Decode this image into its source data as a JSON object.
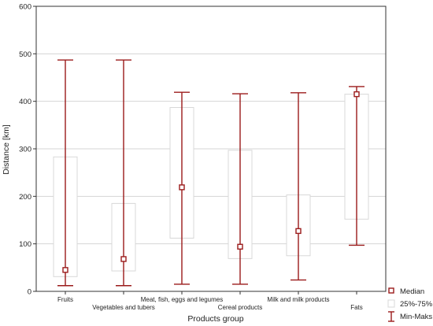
{
  "chart_data": {
    "type": "box",
    "xlabel": "Products group",
    "ylabel": "Distance [km]",
    "ylim": [
      0,
      600
    ],
    "yticks": [
      0,
      100,
      200,
      300,
      400,
      500,
      600
    ],
    "grid": true,
    "legend_placement": "bottom-right",
    "categories": [
      "Fruits",
      "Vegetables and tubers",
      "Meat, fish, eggs and legumes",
      "Cereal products",
      "Milk and milk products",
      "Fats"
    ],
    "series": [
      {
        "name": "Median",
        "values": [
          45,
          68,
          219,
          94,
          127,
          415
        ]
      },
      {
        "name": "25%-75%",
        "q1": [
          31,
          43,
          112,
          69,
          75,
          152
        ],
        "q3": [
          283,
          185,
          387,
          297,
          203,
          415
        ]
      },
      {
        "name": "Min-Maks",
        "min": [
          12,
          12,
          15,
          15,
          24,
          97
        ],
        "max": [
          487,
          487,
          419,
          416,
          418,
          431
        ]
      }
    ],
    "colors": {
      "accent": "#9b1b1b",
      "box_stroke": "#d8d8d8",
      "grid": "#d4d4d4"
    }
  }
}
